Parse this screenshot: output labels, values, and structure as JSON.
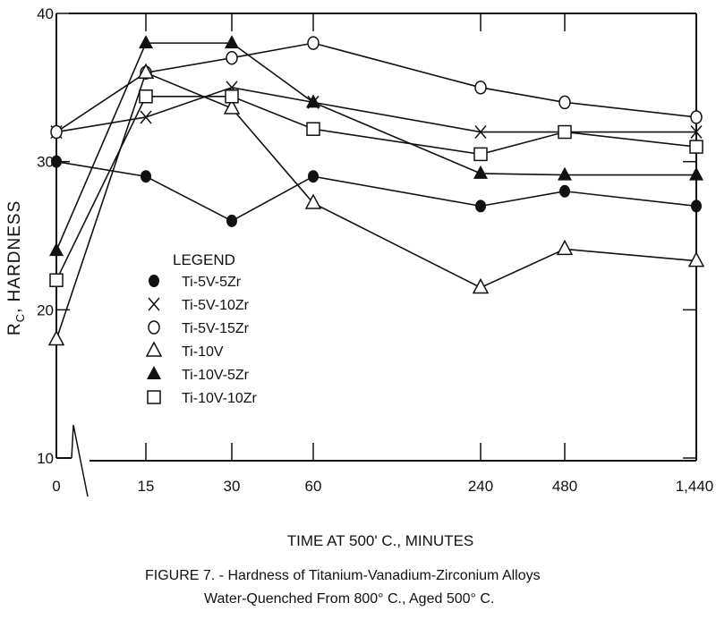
{
  "chart_data": {
    "type": "line",
    "title": "",
    "xlabel": "TIME AT 500' C., MINUTES",
    "ylabel": "RC, HARDNESS",
    "ylabel_main": "R",
    "ylabel_sub": "C",
    "ylabel_rest": ", HARDNESS",
    "categories": [
      "0",
      "15",
      "30",
      "60",
      "240",
      "480",
      "1,440"
    ],
    "yticks": [
      "10",
      "20",
      "30",
      "40"
    ],
    "ylim": [
      10,
      40
    ],
    "grid": false,
    "x_scale": "categorical (non-linear time, axis break after 0)",
    "legend": {
      "title": "LEGEND",
      "placement": "center-left"
    },
    "series": [
      {
        "name": "Ti-5V-5Zr",
        "marker": "filled-circle",
        "values": [
          30,
          29,
          26,
          29,
          27,
          28,
          27
        ]
      },
      {
        "name": "Ti-5V-10Zr",
        "marker": "x",
        "values": [
          32,
          33,
          35,
          34,
          32,
          32,
          32
        ]
      },
      {
        "name": "Ti-5V-15Zr",
        "marker": "open-circle",
        "values": [
          32,
          36,
          37,
          38,
          35,
          34,
          33
        ]
      },
      {
        "name": "Ti-10V",
        "marker": "open-triangle",
        "values": [
          18,
          36,
          33.6,
          27.2,
          21.5,
          24.1,
          23.3
        ]
      },
      {
        "name": "Ti-10V-5Zr",
        "marker": "filled-triangle",
        "values": [
          24,
          38,
          38,
          34,
          29.2,
          29.1,
          29.1
        ]
      },
      {
        "name": "Ti-10V-10Zr",
        "marker": "open-square",
        "values": [
          22,
          34.4,
          34.4,
          32.2,
          30.5,
          32,
          31
        ]
      }
    ]
  },
  "caption": {
    "line1": "FIGURE 7. - Hardness of Titanium-Vanadium-Zirconium Alloys",
    "line2": "Water-Quenched From 800° C., Aged 500° C."
  }
}
